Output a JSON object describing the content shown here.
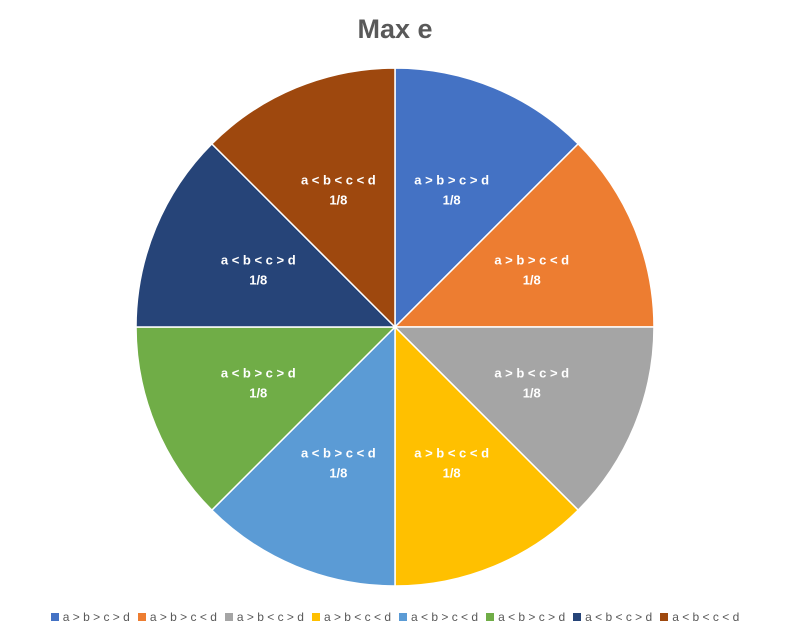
{
  "chart_data": {
    "type": "pie",
    "title": "Max e",
    "legend_position": "bottom",
    "slices": [
      {
        "label": "a > b > c > d",
        "value": 0.125,
        "data_label": "1/8",
        "color": "#4472C4"
      },
      {
        "label": "a > b > c < d",
        "value": 0.125,
        "data_label": "1/8",
        "color": "#ED7D31"
      },
      {
        "label": "a > b < c > d",
        "value": 0.125,
        "data_label": "1/8",
        "color": "#A5A5A5"
      },
      {
        "label": "a > b < c < d",
        "value": 0.125,
        "data_label": "1/8",
        "color": "#FFC000"
      },
      {
        "label": "a < b > c < d",
        "value": 0.125,
        "data_label": "1/8",
        "color": "#5B9BD5"
      },
      {
        "label": "a < b > c > d",
        "value": 0.125,
        "data_label": "1/8",
        "color": "#70AD47"
      },
      {
        "label": "a < b < c > d",
        "value": 0.125,
        "data_label": "1/8",
        "color": "#264478"
      },
      {
        "label": "a < b < c < d",
        "value": 0.125,
        "data_label": "1/8",
        "color": "#9E480E"
      }
    ]
  }
}
